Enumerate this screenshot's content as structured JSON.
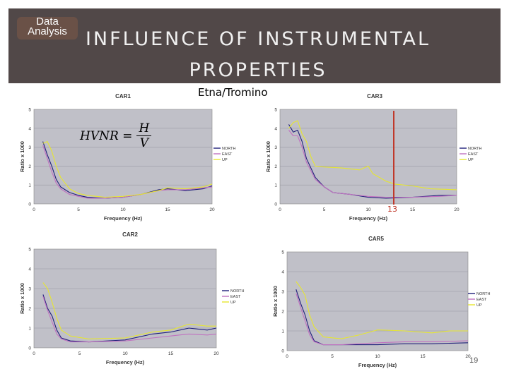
{
  "badge": {
    "line1": "Data",
    "line2": "Analysis"
  },
  "header": {
    "title_line1": "INFLUENCE OF INSTRUMENTAL",
    "title_line2": "PROPERTIES"
  },
  "subtitle": "Etna/Tromino",
  "formula": {
    "lhs": "HVNR =",
    "num": "H",
    "den": "V"
  },
  "marker_label": "13",
  "page_number": "19",
  "colors": {
    "plot_bg": "#c0c0c8",
    "north": "#1f1f7a",
    "east": "#c071c0",
    "up": "#e6e630",
    "marker": "#c0392b",
    "header_bg": "#514848",
    "badge_bg": "#6a5147"
  },
  "chart_data": [
    {
      "type": "line",
      "title": "CAR1",
      "xlabel": "Frequency (Hz)",
      "ylabel": "Ratio x 1000",
      "xlim": [
        0,
        20
      ],
      "ylim": [
        0,
        5
      ],
      "xticks": [
        0,
        5,
        10,
        15,
        20
      ],
      "yticks": [
        0,
        1,
        2,
        3,
        4,
        5
      ],
      "legend": "right",
      "series": [
        {
          "name": "NORTH",
          "points": [
            [
              1,
              3.3
            ],
            [
              1.5,
              2.6
            ],
            [
              2,
              2
            ],
            [
              2.5,
              1.3
            ],
            [
              3,
              0.9
            ],
            [
              4,
              0.6
            ],
            [
              5,
              0.45
            ],
            [
              6,
              0.35
            ],
            [
              8,
              0.3
            ],
            [
              10,
              0.35
            ],
            [
              12,
              0.5
            ],
            [
              14,
              0.75
            ],
            [
              15,
              0.8
            ],
            [
              17,
              0.7
            ],
            [
              19,
              0.8
            ],
            [
              20,
              0.95
            ]
          ]
        },
        {
          "name": "EAST",
          "points": [
            [
              1,
              3.1
            ],
            [
              1.5,
              2.4
            ],
            [
              2,
              1.7
            ],
            [
              2.5,
              1.1
            ],
            [
              3,
              0.8
            ],
            [
              4,
              0.5
            ],
            [
              5,
              0.4
            ],
            [
              6,
              0.3
            ],
            [
              8,
              0.3
            ],
            [
              10,
              0.35
            ],
            [
              12,
              0.5
            ],
            [
              14,
              0.7
            ],
            [
              15,
              0.75
            ],
            [
              17,
              0.75
            ],
            [
              19,
              0.85
            ],
            [
              20,
              0.9
            ]
          ]
        },
        {
          "name": "UP",
          "points": [
            [
              1,
              3.2
            ],
            [
              1.5,
              3.3
            ],
            [
              2,
              2.8
            ],
            [
              2.5,
              2.0
            ],
            [
              3,
              1.4
            ],
            [
              4,
              0.8
            ],
            [
              5,
              0.55
            ],
            [
              6,
              0.45
            ],
            [
              8,
              0.35
            ],
            [
              10,
              0.4
            ],
            [
              12,
              0.5
            ],
            [
              14,
              0.7
            ],
            [
              15,
              0.85
            ],
            [
              17,
              0.8
            ],
            [
              19,
              0.9
            ],
            [
              20,
              1.05
            ]
          ]
        }
      ]
    },
    {
      "type": "line",
      "title": "CAR3",
      "xlabel": "Frequency (Hz)",
      "ylabel": "Ratio x 1000",
      "xlim": [
        0,
        20
      ],
      "ylim": [
        0,
        5
      ],
      "xticks": [
        0,
        5,
        10,
        15,
        20
      ],
      "yticks": [
        0,
        1,
        2,
        3,
        4,
        5
      ],
      "legend": "right",
      "series": [
        {
          "name": "NORTH",
          "points": [
            [
              1,
              4.2
            ],
            [
              1.5,
              3.8
            ],
            [
              2,
              3.9
            ],
            [
              2.5,
              3.3
            ],
            [
              3,
              2.4
            ],
            [
              4,
              1.4
            ],
            [
              5,
              0.9
            ],
            [
              6,
              0.6
            ],
            [
              8,
              0.5
            ],
            [
              10,
              0.35
            ],
            [
              12,
              0.3
            ],
            [
              15,
              0.35
            ],
            [
              18,
              0.45
            ],
            [
              20,
              0.45
            ]
          ]
        },
        {
          "name": "EAST",
          "points": [
            [
              1,
              3.9
            ],
            [
              1.5,
              3.6
            ],
            [
              2,
              3.6
            ],
            [
              2.5,
              3.0
            ],
            [
              3,
              2.2
            ],
            [
              4,
              1.3
            ],
            [
              5,
              0.9
            ],
            [
              6,
              0.6
            ],
            [
              8,
              0.5
            ],
            [
              10,
              0.4
            ],
            [
              12,
              0.35
            ],
            [
              15,
              0.35
            ],
            [
              18,
              0.4
            ],
            [
              20,
              0.45
            ]
          ]
        },
        {
          "name": "UP",
          "points": [
            [
              1,
              4.0
            ],
            [
              1.5,
              4.3
            ],
            [
              2,
              4.4
            ],
            [
              2.5,
              3.7
            ],
            [
              3,
              3.3
            ],
            [
              3.5,
              2.5
            ],
            [
              4,
              2.0
            ],
            [
              5,
              1.95
            ],
            [
              7,
              1.9
            ],
            [
              9,
              1.8
            ],
            [
              10,
              2.0
            ],
            [
              10.5,
              1.6
            ],
            [
              12,
              1.2
            ],
            [
              13,
              1.05
            ],
            [
              15,
              0.95
            ],
            [
              17,
              0.8
            ],
            [
              20,
              0.75
            ]
          ]
        }
      ]
    },
    {
      "type": "line",
      "title": "CAR2",
      "xlabel": "Frequency (Hz)",
      "ylabel": "Ratio x 1000",
      "xlim": [
        0,
        20
      ],
      "ylim": [
        0,
        5
      ],
      "xticks": [
        0,
        5,
        10,
        15,
        20
      ],
      "yticks": [
        0,
        1,
        2,
        3,
        4,
        5
      ],
      "legend": "right",
      "series": [
        {
          "name": "NORTH",
          "points": [
            [
              1,
              2.7
            ],
            [
              1.5,
              2.0
            ],
            [
              2,
              1.6
            ],
            [
              2.5,
              0.9
            ],
            [
              3,
              0.5
            ],
            [
              4,
              0.35
            ],
            [
              6,
              0.3
            ],
            [
              10,
              0.4
            ],
            [
              13,
              0.7
            ],
            [
              15,
              0.8
            ],
            [
              17,
              1.0
            ],
            [
              19,
              0.9
            ],
            [
              20,
              1.0
            ]
          ]
        },
        {
          "name": "EAST",
          "points": [
            [
              1,
              2.6
            ],
            [
              1.5,
              1.9
            ],
            [
              2,
              1.3
            ],
            [
              2.5,
              0.7
            ],
            [
              3,
              0.45
            ],
            [
              4,
              0.3
            ],
            [
              6,
              0.3
            ],
            [
              10,
              0.35
            ],
            [
              13,
              0.5
            ],
            [
              15,
              0.6
            ],
            [
              17,
              0.7
            ],
            [
              19,
              0.65
            ],
            [
              20,
              0.7
            ]
          ]
        },
        {
          "name": "UP",
          "points": [
            [
              1,
              3.3
            ],
            [
              1.5,
              3.0
            ],
            [
              2,
              2.3
            ],
            [
              2.5,
              1.5
            ],
            [
              3,
              0.9
            ],
            [
              4,
              0.6
            ],
            [
              6,
              0.45
            ],
            [
              10,
              0.5
            ],
            [
              13,
              0.8
            ],
            [
              15,
              0.9
            ],
            [
              17,
              1.2
            ],
            [
              19,
              1.1
            ],
            [
              20,
              1.1
            ]
          ]
        }
      ]
    },
    {
      "type": "line",
      "title": "CAR5",
      "xlabel": "Frequency (Hz)",
      "ylabel": "Ratio x 1000",
      "xlim": [
        0,
        20
      ],
      "ylim": [
        0,
        5
      ],
      "xticks": [
        0,
        5,
        10,
        15,
        20
      ],
      "yticks": [
        0,
        1,
        2,
        3,
        4,
        5
      ],
      "legend": "right",
      "series": [
        {
          "name": "NORTH",
          "points": [
            [
              1,
              3.1
            ],
            [
              1.5,
              2.4
            ],
            [
              2,
              1.8
            ],
            [
              2.5,
              1.0
            ],
            [
              3,
              0.5
            ],
            [
              4,
              0.3
            ],
            [
              6,
              0.3
            ],
            [
              8,
              0.3
            ],
            [
              10,
              0.3
            ],
            [
              13,
              0.35
            ],
            [
              16,
              0.35
            ],
            [
              20,
              0.4
            ]
          ]
        },
        {
          "name": "EAST",
          "points": [
            [
              1,
              2.9
            ],
            [
              1.5,
              2.2
            ],
            [
              2,
              1.5
            ],
            [
              2.5,
              0.8
            ],
            [
              3,
              0.45
            ],
            [
              4,
              0.3
            ],
            [
              6,
              0.3
            ],
            [
              8,
              0.35
            ],
            [
              10,
              0.4
            ],
            [
              13,
              0.45
            ],
            [
              16,
              0.45
            ],
            [
              20,
              0.5
            ]
          ]
        },
        {
          "name": "UP",
          "points": [
            [
              1,
              3.5
            ],
            [
              1.5,
              3.2
            ],
            [
              2,
              2.8
            ],
            [
              2.5,
              1.8
            ],
            [
              3,
              1.2
            ],
            [
              4,
              0.7
            ],
            [
              6,
              0.6
            ],
            [
              8,
              0.8
            ],
            [
              10,
              1.05
            ],
            [
              13,
              1.0
            ],
            [
              16,
              0.9
            ],
            [
              18,
              1.0
            ],
            [
              20,
              1.0
            ]
          ]
        }
      ]
    }
  ]
}
